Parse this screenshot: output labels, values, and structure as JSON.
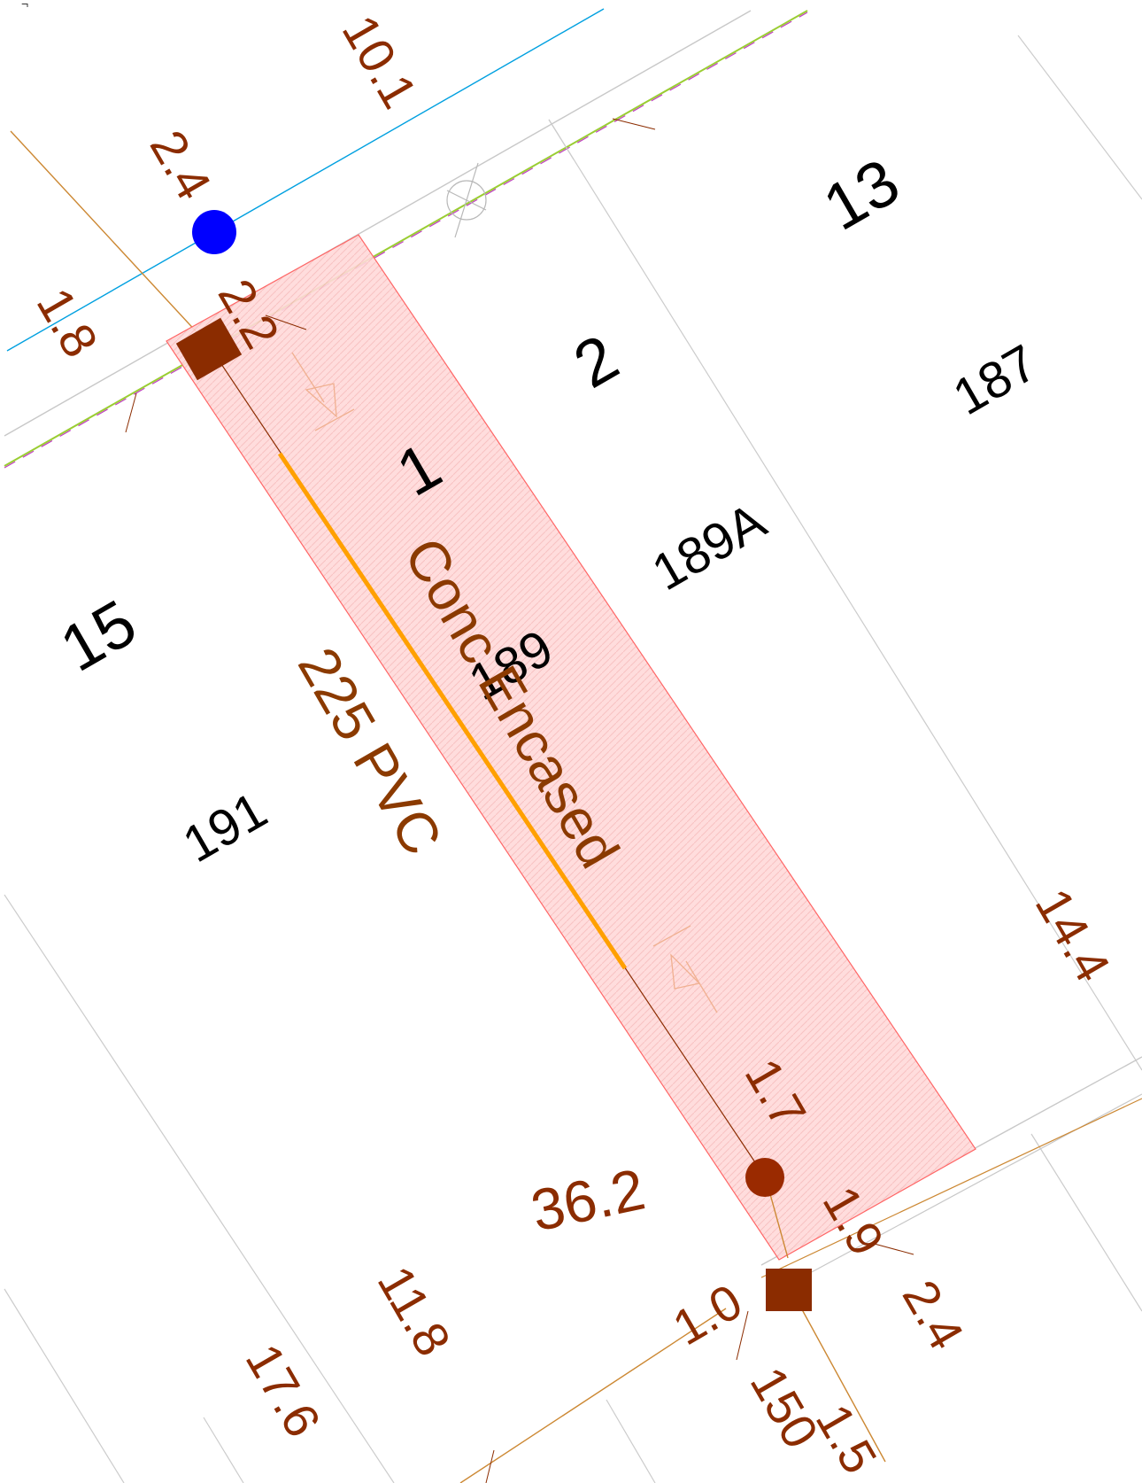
{
  "corner_mark": "¬",
  "lots": {
    "lot_1": "1",
    "lot_2": "2",
    "lot_13": "13",
    "lot_15": "15"
  },
  "addresses": {
    "a187": "187",
    "a189": "189",
    "a189A": "189A",
    "a191": "191"
  },
  "dimensions": {
    "d10_1": "10.1",
    "d2_4_top": "2.4",
    "d1_8": "1.8",
    "d2_2": "2.2",
    "d14_4": "14.4",
    "d1_7": "1.7",
    "d1_9": "1.9",
    "d36_2": "36.2",
    "d1_0": "1.0",
    "d2_4_bottom": "2.4",
    "d11_8": "11.8",
    "d17_6": "17.6",
    "d150": "150",
    "d1_5": "1.5"
  },
  "pipe": {
    "size_label": "225 PVC",
    "encasement_label": "Conc Encased"
  },
  "colors": {
    "sewer": "#8b2c00",
    "water_main": "#00a0e0",
    "water_valve": "#0000ff",
    "encasement": "#ffa000",
    "easement_fill": "#ffd6d6",
    "easement_edge": "#ff6666",
    "property_line": "#c8c8c8",
    "road_boundary_green": "#9acd32",
    "road_boundary_magenta": "#c040c0"
  },
  "icons": {
    "manhole_upstream": "square-manhole-icon",
    "manhole_downstream": "square-manhole-icon",
    "junction": "round-junction-icon",
    "water_valve": "blue-valve-icon",
    "hydrant": "crossed-circle-hydrant-icon",
    "flow_arrow_down": "flow-arrow-icon",
    "flow_arrow_up": "flow-arrow-icon"
  }
}
